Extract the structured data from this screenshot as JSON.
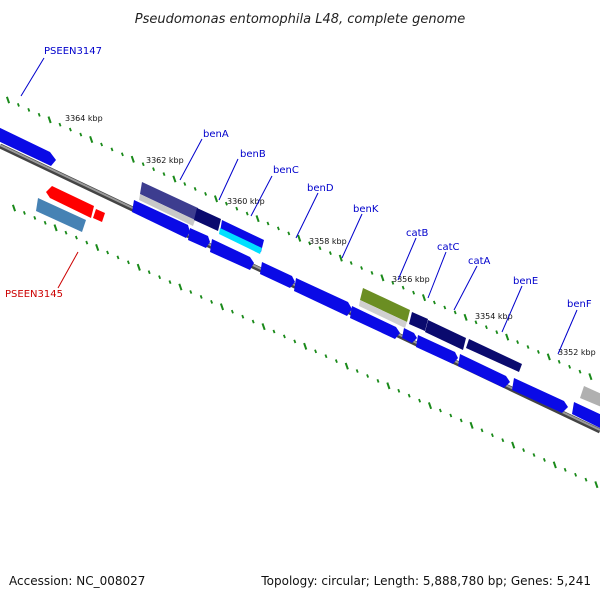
{
  "title": "Pseudomonas entomophila L48, complete genome",
  "footer": {
    "accession": "Accession: NC_008027",
    "summary": "Topology: circular; Length: 5,888,780 bp; Genes: 5,241"
  },
  "scale_labels": [
    "3364 kbp",
    "3362 kbp",
    "3360 kbp",
    "3358 kbp",
    "3356 kbp",
    "3354 kbp",
    "3352 kbp"
  ],
  "gene_labels": [
    {
      "name": "PSEEN3147",
      "color": "#0000cc"
    },
    {
      "name": "benA",
      "color": "#0000cc"
    },
    {
      "name": "benB",
      "color": "#0000cc"
    },
    {
      "name": "benC",
      "color": "#0000cc"
    },
    {
      "name": "benD",
      "color": "#0000cc"
    },
    {
      "name": "benK",
      "color": "#0000cc"
    },
    {
      "name": "catB",
      "color": "#0000cc"
    },
    {
      "name": "catC",
      "color": "#0000cc"
    },
    {
      "name": "catA",
      "color": "#0000cc"
    },
    {
      "name": "benE",
      "color": "#0000cc"
    },
    {
      "name": "benF",
      "color": "#0000cc"
    },
    {
      "name": "PSEEN3145",
      "color": "#cc0000"
    }
  ],
  "colors": {
    "backbone": "#7a7a7a",
    "tick": "#1a8a1a",
    "cds_blue": "#0a0ae6",
    "navy": "#0a0a6e",
    "cyan": "#00e0ff",
    "olive": "#6b8e23",
    "red": "#ff0000",
    "steel": "#4682b4",
    "gray_feature": "#b0b0b0"
  }
}
